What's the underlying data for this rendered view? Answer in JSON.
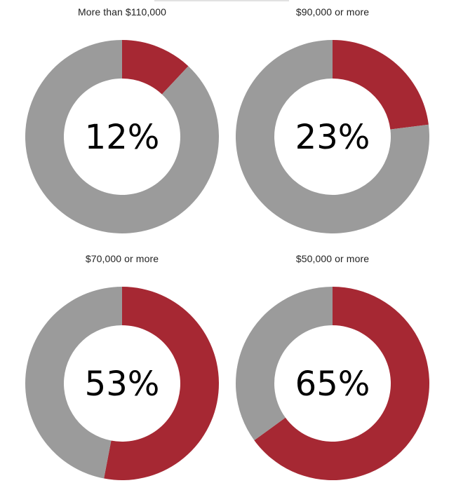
{
  "colors": {
    "highlight": "#a62833",
    "remainder": "#9b9b9b",
    "hole": "#ffffff"
  },
  "chart_data": [
    {
      "type": "pie",
      "title": "More than $110,000",
      "values": [
        12,
        88
      ],
      "label": "12%"
    },
    {
      "type": "pie",
      "title": "$90,000 or more",
      "values": [
        23,
        77
      ],
      "label": "23%"
    },
    {
      "type": "pie",
      "title": "$70,000 or more",
      "values": [
        53,
        47
      ],
      "label": "53%"
    },
    {
      "type": "pie",
      "title": "$50,000 or more",
      "values": [
        65,
        35
      ],
      "label": "65%"
    }
  ]
}
